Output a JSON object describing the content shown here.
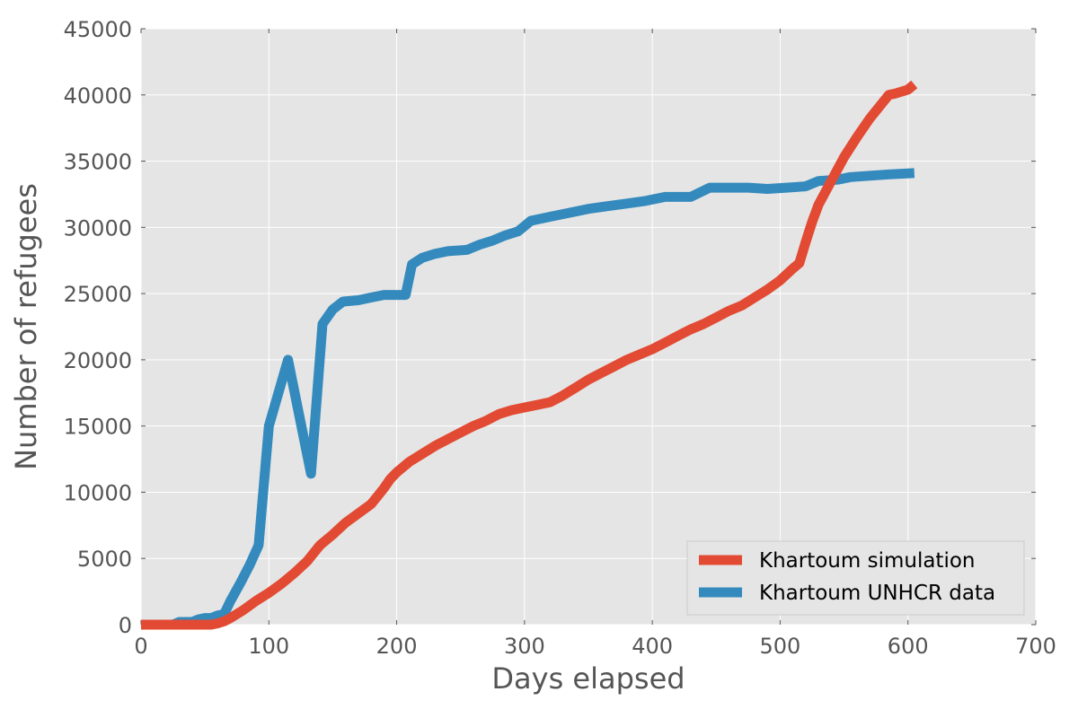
{
  "chart_data": {
    "type": "line",
    "title": "",
    "xlabel": "Days elapsed",
    "ylabel": "Number of refugees",
    "xlim": [
      0,
      700
    ],
    "ylim": [
      0,
      45000
    ],
    "xticks": [
      0,
      100,
      200,
      300,
      400,
      500,
      600,
      700
    ],
    "yticks": [
      0,
      5000,
      10000,
      15000,
      20000,
      25000,
      30000,
      35000,
      40000,
      45000
    ],
    "grid": true,
    "legend_position": "bottom-right",
    "series": [
      {
        "name": "Khartoum simulation",
        "color": "#e24a33",
        "x": [
          0,
          55,
          60,
          65,
          70,
          80,
          90,
          100,
          110,
          120,
          130,
          135,
          140,
          150,
          160,
          170,
          180,
          185,
          190,
          195,
          200,
          210,
          220,
          230,
          240,
          250,
          260,
          270,
          280,
          290,
          300,
          310,
          320,
          330,
          340,
          350,
          360,
          370,
          380,
          390,
          400,
          410,
          420,
          430,
          440,
          450,
          460,
          470,
          480,
          490,
          500,
          510,
          515,
          520,
          525,
          530,
          540,
          550,
          560,
          570,
          580,
          585,
          590,
          600,
          605
        ],
        "y": [
          0,
          0,
          100,
          250,
          500,
          1100,
          1800,
          2400,
          3100,
          3900,
          4800,
          5400,
          6000,
          6800,
          7700,
          8400,
          9100,
          9700,
          10300,
          11000,
          11500,
          12300,
          12900,
          13500,
          14000,
          14500,
          15000,
          15400,
          15900,
          16200,
          16400,
          16600,
          16800,
          17300,
          17900,
          18500,
          19000,
          19500,
          20000,
          20400,
          20800,
          21300,
          21800,
          22300,
          22700,
          23200,
          23700,
          24100,
          24700,
          25300,
          26000,
          26900,
          27300,
          28900,
          30400,
          31700,
          33500,
          35300,
          36800,
          38200,
          39400,
          40000,
          40100,
          40400,
          40800
        ]
      },
      {
        "name": "Khartoum UNHCR data",
        "color": "#348abd",
        "x": [
          0,
          25,
          30,
          40,
          45,
          50,
          55,
          60,
          65,
          70,
          78,
          85,
          92,
          100,
          115,
          133,
          142,
          150,
          158,
          170,
          180,
          190,
          200,
          207,
          212,
          220,
          230,
          240,
          255,
          265,
          275,
          285,
          295,
          300,
          305,
          320,
          335,
          350,
          365,
          380,
          395,
          410,
          430,
          445,
          460,
          475,
          490,
          505,
          520,
          530,
          545,
          555,
          570,
          585,
          605
        ],
        "y": [
          0,
          0,
          200,
          200,
          400,
          500,
          500,
          700,
          800,
          1800,
          3200,
          4500,
          6000,
          15000,
          20000,
          11400,
          22700,
          23800,
          24400,
          24500,
          24700,
          24900,
          24900,
          24900,
          27200,
          27700,
          28000,
          28200,
          28300,
          28700,
          29000,
          29400,
          29700,
          30100,
          30500,
          30800,
          31100,
          31400,
          31600,
          31800,
          32000,
          32300,
          32300,
          33000,
          33000,
          33000,
          32900,
          33000,
          33100,
          33500,
          33600,
          33800,
          33900,
          34000,
          34100
        ]
      }
    ]
  }
}
